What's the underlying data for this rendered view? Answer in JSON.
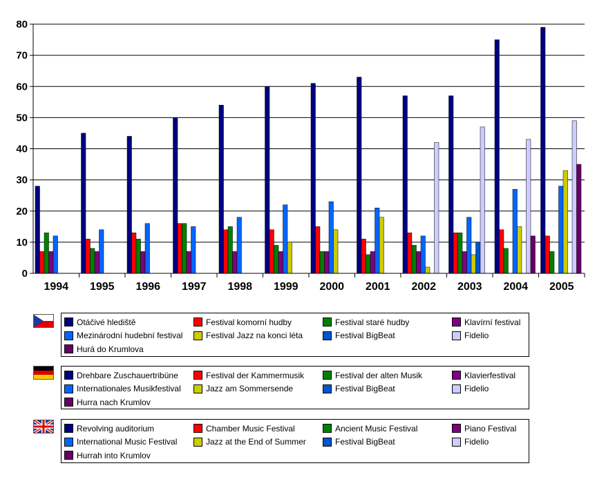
{
  "chart_data": {
    "type": "bar",
    "categories": [
      "1994",
      "1995",
      "1996",
      "1997",
      "1998",
      "1999",
      "2000",
      "2001",
      "2002",
      "2003",
      "2004",
      "2005"
    ],
    "ylim": [
      0,
      80
    ],
    "yticks": [
      0,
      10,
      20,
      30,
      40,
      50,
      60,
      70,
      80
    ],
    "grid": true,
    "series": [
      {
        "name": "Otáčivé hlediště",
        "color": "#000080",
        "values": [
          28,
          45,
          44,
          50,
          54,
          60,
          61,
          63,
          57,
          57,
          75,
          79
        ]
      },
      {
        "name": "Festival komorní hudby",
        "color": "#ff0000",
        "values": [
          7,
          11,
          13,
          16,
          14,
          14,
          15,
          11,
          13,
          13,
          14,
          12
        ]
      },
      {
        "name": "Festival staré hudby",
        "color": "#008000",
        "values": [
          13,
          8,
          11,
          16,
          15,
          9,
          7,
          6,
          9,
          13,
          8,
          7
        ]
      },
      {
        "name": "Klavírní festival",
        "color": "#800080",
        "values": [
          7,
          7,
          7,
          7,
          7,
          7,
          7,
          7,
          7,
          7,
          null,
          null
        ]
      },
      {
        "name": "Mezinárodní hudební festival",
        "color": "#0066ff",
        "values": [
          12,
          14,
          16,
          15,
          18,
          22,
          23,
          21,
          12,
          18,
          27,
          28
        ]
      },
      {
        "name": "Festival Jazz na konci léta",
        "color": "#cccc00",
        "values": [
          null,
          null,
          null,
          null,
          null,
          10,
          14,
          18,
          2,
          6,
          15,
          33
        ]
      },
      {
        "name": "Festival BigBeat",
        "color": "#0055cc",
        "values": [
          null,
          null,
          null,
          null,
          null,
          null,
          null,
          null,
          null,
          10,
          null,
          null
        ]
      },
      {
        "name": "Fidelio",
        "color": "#ccccff",
        "values": [
          null,
          null,
          null,
          null,
          null,
          null,
          null,
          null,
          42,
          47,
          43,
          49
        ]
      },
      {
        "name": "Hurá do Krumlova",
        "color": "#660066",
        "values": [
          null,
          null,
          null,
          null,
          null,
          null,
          null,
          null,
          null,
          null,
          12,
          35
        ]
      }
    ]
  },
  "legends": [
    {
      "flag": "czech-flag",
      "items": [
        "Otáčivé hlediště",
        "Festival komorní hudby",
        "Festival staré hudby",
        "Klavírní festival",
        "Mezinárodní hudební festival",
        "Festival Jazz na konci léta",
        "Festival BigBeat",
        "Fidelio",
        "Hurá do Krumlova"
      ]
    },
    {
      "flag": "german-flag",
      "items": [
        "Drehbare Zuschauertribüne",
        "Festival der Kammermusik",
        "Festival der alten Musik",
        "Klavierfestival",
        "Internationales Musikfestival",
        "Jazz am Sommersende",
        "Festival BigBeat",
        "Fidelio",
        "Hurra nach Krumlov"
      ]
    },
    {
      "flag": "uk-flag",
      "items": [
        "Revolving auditorium",
        "Chamber Music Festival",
        "Ancient Music Festival",
        "Piano Festival",
        "International Music Festival",
        "Jazz at the End of Summer",
        "Festival BigBeat",
        "Fidelio",
        "Hurrah into Krumlov"
      ]
    }
  ]
}
